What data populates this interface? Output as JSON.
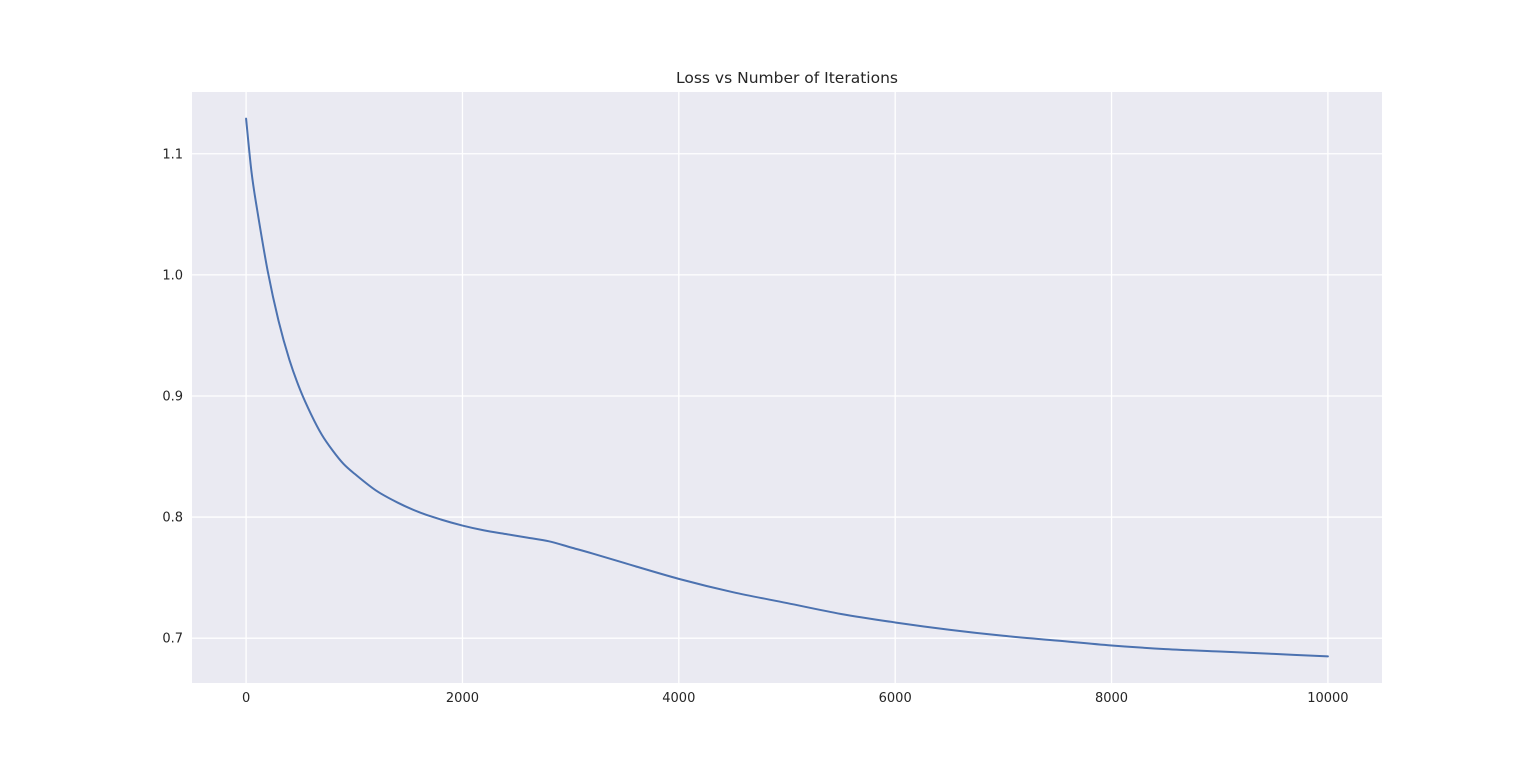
{
  "chart_data": {
    "type": "line",
    "title": "Loss vs Number of Iterations",
    "xlabel": "",
    "ylabel": "",
    "xlim": [
      -500,
      10500
    ],
    "ylim": [
      0.663,
      1.151
    ],
    "xticks": [
      0,
      2000,
      4000,
      6000,
      8000,
      10000
    ],
    "xtick_labels": [
      "0",
      "2000",
      "4000",
      "6000",
      "8000",
      "10000"
    ],
    "yticks": [
      0.7,
      0.8,
      0.9,
      1.0,
      1.1
    ],
    "ytick_labels": [
      "0.7",
      "0.8",
      "0.9",
      "1.0",
      "1.1"
    ],
    "grid": true,
    "legend": "none",
    "colors": {
      "line": "#4c72b0",
      "plot_background": "#eaeaf2",
      "grid": "#ffffff"
    },
    "series": [
      {
        "x": [
          0,
          50,
          100,
          200,
          300,
          400,
          500,
          600,
          700,
          800,
          900,
          1000,
          1200,
          1400,
          1600,
          1800,
          2000,
          2200,
          2400,
          2600,
          2800,
          3000,
          3200,
          3500,
          4000,
          4500,
          5000,
          5500,
          6000,
          6500,
          7000,
          7500,
          8000,
          8500,
          9000,
          9500,
          10000
        ],
        "y": [
          1.129,
          1.085,
          1.055,
          1.003,
          0.962,
          0.93,
          0.905,
          0.885,
          0.868,
          0.855,
          0.844,
          0.836,
          0.822,
          0.812,
          0.804,
          0.798,
          0.793,
          0.789,
          0.786,
          0.783,
          0.78,
          0.775,
          0.77,
          0.762,
          0.749,
          0.738,
          0.729,
          0.72,
          0.713,
          0.707,
          0.702,
          0.698,
          0.694,
          0.691,
          0.689,
          0.687,
          0.685
        ]
      }
    ]
  }
}
